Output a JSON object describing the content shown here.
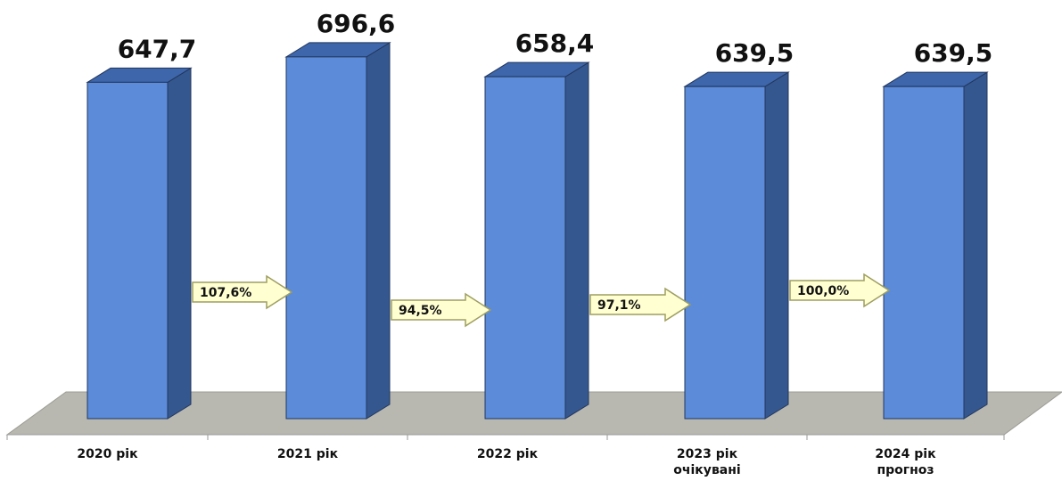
{
  "chart_data": {
    "type": "bar",
    "title": "",
    "xlabel": "",
    "ylabel": "",
    "categories": [
      [
        "2020 рік"
      ],
      [
        "2021 рік"
      ],
      [
        "2022 рік"
      ],
      [
        "2023 рік",
        "очікувані"
      ],
      [
        "2024 рік",
        "прогноз"
      ]
    ],
    "values": [
      647.7,
      696.6,
      658.4,
      639.5,
      639.5
    ],
    "value_labels": [
      "647,7",
      "696,6",
      "658,4",
      "639,5",
      "639,5"
    ],
    "growth_labels": [
      "107,6%",
      "94,5%",
      "97,1%",
      "100,0%"
    ],
    "ylim": [
      0,
      700
    ],
    "grid": false,
    "legend": "none",
    "colors": {
      "bar_front": "#5B8BD9",
      "bar_side": "#35578F",
      "bar_top": "#3E66AA",
      "floor": "#B8B8B0",
      "arrow_fill": "#FFFFD2",
      "arrow_stroke": "#9E9E60",
      "axis_line": "#9A9A9A"
    }
  }
}
